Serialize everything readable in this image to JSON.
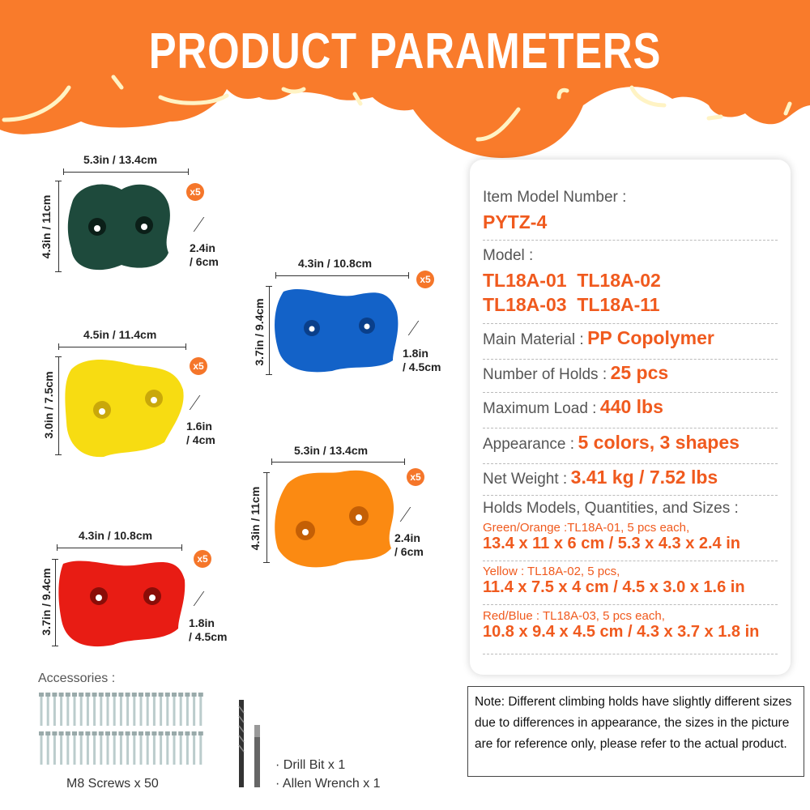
{
  "header": {
    "title": "PRODUCT PARAMETERS",
    "color": "#f97b2b"
  },
  "holds": [
    {
      "color_name": "green",
      "color": "#1e4a3c",
      "width_label": "5.3in / 13.4cm",
      "height_label": "4.3in / 11cm",
      "depth_line1": "2.4in",
      "depth_line2": "/ 6cm",
      "qty": "x5"
    },
    {
      "color_name": "blue",
      "color": "#1362c8",
      "width_label": "4.3in / 10.8cm",
      "height_label": "3.7in / 9.4cm",
      "depth_line1": "1.8in",
      "depth_line2": "/ 4.5cm",
      "qty": "x5"
    },
    {
      "color_name": "yellow",
      "color": "#f7dc12",
      "width_label": "4.5in / 11.4cm",
      "height_label": "3.0in / 7.5cm",
      "depth_line1": "1.6in",
      "depth_line2": "/ 4cm",
      "qty": "x5"
    },
    {
      "color_name": "orange",
      "color": "#fb8a12",
      "width_label": "5.3in / 13.4cm",
      "height_label": "4.3in / 11cm",
      "depth_line1": "2.4in",
      "depth_line2": "/ 6cm",
      "qty": "x5"
    },
    {
      "color_name": "red",
      "color": "#e81c14",
      "width_label": "4.3in / 10.8cm",
      "height_label": "3.7in / 9.4cm",
      "depth_line1": "1.8in",
      "depth_line2": "/ 4.5cm",
      "qty": "x5"
    }
  ],
  "specs": {
    "item_model_label": "Item Model Number :",
    "item_model_value": "PYTZ-4",
    "model_label": "Model :",
    "model_values": [
      "TL18A-01  TL18A-02",
      "TL18A-03  TL18A-11"
    ],
    "material_label": "Main Material :",
    "material_value": "PP Copolymer",
    "holds_label": "Number of Holds :",
    "holds_value": "25 pcs",
    "load_label": "Maximum Load :",
    "load_value": "440 lbs",
    "appearance_label": "Appearance :",
    "appearance_value": "5 colors, 3 shapes",
    "weight_label": "Net Weight :",
    "weight_value": "3.41 kg / 7.52 lbs",
    "sizes_label": "Holds Models, Quantities, and Sizes :",
    "sizes": [
      {
        "desc": "Green/Orange :TL18A-01, 5 pcs each,",
        "size": "13.4 x 11 x 6 cm / 5.3 x 4.3 x 2.4 in"
      },
      {
        "desc": "Yellow : TL18A-02, 5 pcs,",
        "size": "11.4 x 7.5 x 4 cm / 4.5 x 3.0 x 1.6 in"
      },
      {
        "desc": "Red/Blue : TL18A-03, 5 pcs each,",
        "size": "10.8 x 9.4 x 4.5 cm / 4.3 x 3.7 x 1.8 in"
      }
    ]
  },
  "note": "Note: Different climbing holds have slightly different sizes due to differences in  appearance, the sizes in the picture are for reference only, please refer to the actual product.",
  "accessories": {
    "label": "Accessories :",
    "screws": "M8 Screws x 50",
    "drill_bit": "· Drill Bit x 1",
    "allen_wrench": "· Allen Wrench x 1"
  }
}
